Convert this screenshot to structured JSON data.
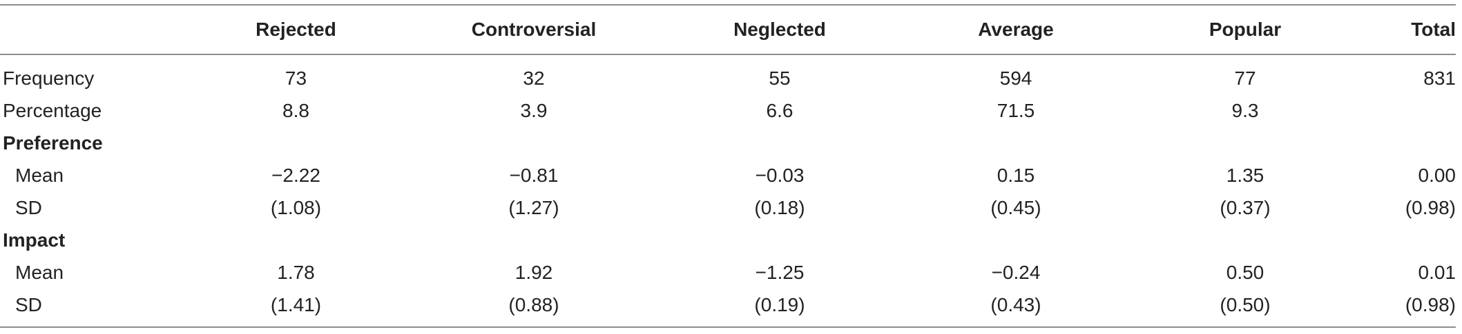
{
  "headers": [
    "",
    "Rejected",
    "Controversial",
    "Neglected",
    "Average",
    "Popular",
    "Total"
  ],
  "rows": [
    {
      "label": "Frequency",
      "cells": [
        "73",
        "32",
        "55",
        "594",
        "77",
        "831"
      ]
    },
    {
      "label": "Percentage",
      "cells": [
        "8.8",
        "3.9",
        "6.6",
        "71.5",
        "9.3",
        ""
      ]
    }
  ],
  "sections": [
    {
      "title": "Preference",
      "rows": [
        {
          "label": "Mean",
          "cells": [
            "−2.22",
            "−0.81",
            "−0.03",
            "0.15",
            "1.35",
            "0.00"
          ]
        },
        {
          "label": "SD",
          "cells": [
            "(1.08)",
            "(1.27)",
            "(0.18)",
            "(0.45)",
            "(0.37)",
            "(0.98)"
          ]
        }
      ]
    },
    {
      "title": "Impact",
      "rows": [
        {
          "label": "Mean",
          "cells": [
            "1.78",
            "1.92",
            "−1.25",
            "−0.24",
            "0.50",
            "0.01"
          ]
        },
        {
          "label": "SD",
          "cells": [
            "(1.41)",
            "(0.88)",
            "(0.19)",
            "(0.43)",
            "(0.50)",
            "(0.98)"
          ]
        }
      ]
    }
  ]
}
